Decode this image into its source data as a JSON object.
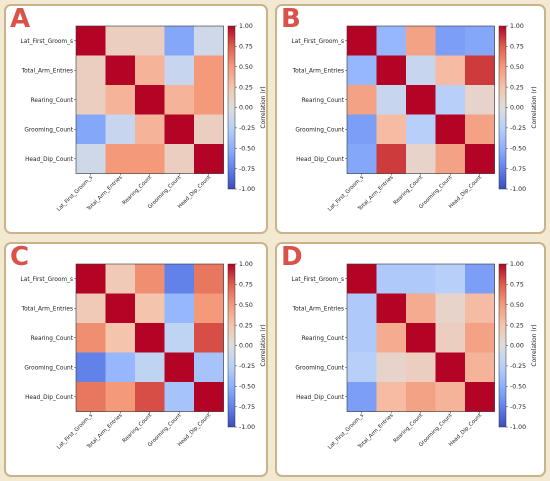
{
  "figure": {
    "background": "#f3e9d2",
    "panel_border": "#c9b489",
    "letter_color": "#d9534a"
  },
  "panels": [
    {
      "letter": "A"
    },
    {
      "letter": "B"
    },
    {
      "letter": "C"
    },
    {
      "letter": "D"
    }
  ],
  "chart_data": [
    {
      "type": "heatmap",
      "panel": "A",
      "variables": [
        "Lat_First_Groom_s",
        "Total_Arm_Entries",
        "Rearing_Count",
        "Grooming_Count",
        "Head_Dip_Count"
      ],
      "matrix": [
        [
          1.0,
          0.15,
          0.15,
          -0.55,
          -0.1
        ],
        [
          0.15,
          1.0,
          0.35,
          -0.15,
          0.5
        ],
        [
          0.15,
          0.35,
          1.0,
          0.35,
          0.5
        ],
        [
          -0.55,
          -0.15,
          0.35,
          1.0,
          0.15
        ],
        [
          -0.1,
          0.5,
          0.5,
          0.15,
          1.0
        ]
      ],
      "colorbar": {
        "label": "Correlation (r)",
        "range": [
          -1.0,
          1.0
        ],
        "ticks": [
          "1.00",
          "0.75",
          "0.50",
          "0.25",
          "0.00",
          "-0.25",
          "-0.50",
          "-0.75",
          "-1.00"
        ],
        "colormap": "coolwarm"
      }
    },
    {
      "type": "heatmap",
      "panel": "B",
      "variables": [
        "Lat_First_Groom_s",
        "Total_Arm_Entries",
        "Rearing_Count",
        "Grooming_Count",
        "Head_Dip_Count"
      ],
      "matrix": [
        [
          1.0,
          -0.45,
          0.45,
          -0.6,
          -0.55
        ],
        [
          -0.45,
          1.0,
          -0.15,
          0.3,
          0.85
        ],
        [
          0.45,
          -0.15,
          1.0,
          -0.25,
          0.1
        ],
        [
          -0.6,
          0.3,
          -0.25,
          1.0,
          0.45
        ],
        [
          -0.55,
          0.85,
          0.1,
          0.45,
          1.0
        ]
      ],
      "colorbar": {
        "label": "Correlation (r)",
        "range": [
          -1.0,
          1.0
        ],
        "ticks": [
          "1.00",
          "0.75",
          "0.50",
          "0.25",
          "0.00",
          "-0.25",
          "-0.50",
          "-0.75",
          "-1.00"
        ],
        "colormap": "coolwarm"
      }
    },
    {
      "type": "heatmap",
      "panel": "C",
      "variables": [
        "Lat_First_Groom_s",
        "Total_Arm_Entries",
        "Rearing_Count",
        "Grooming_Count",
        "Head_Dip_Count"
      ],
      "matrix": [
        [
          1.0,
          0.2,
          0.55,
          -0.75,
          0.65
        ],
        [
          0.2,
          1.0,
          0.25,
          -0.45,
          0.5
        ],
        [
          0.55,
          0.25,
          1.0,
          -0.2,
          0.8
        ],
        [
          -0.75,
          -0.45,
          -0.2,
          1.0,
          -0.35
        ],
        [
          0.65,
          0.5,
          0.8,
          -0.35,
          1.0
        ]
      ],
      "colorbar": {
        "label": "Correlation (r)",
        "range": [
          -1.0,
          1.0
        ],
        "ticks": [
          "1.00",
          "0.75",
          "0.50",
          "0.25",
          "0.00",
          "-0.25",
          "-0.50",
          "-0.75",
          "-1.00"
        ],
        "colormap": "coolwarm"
      }
    },
    {
      "type": "heatmap",
      "panel": "D",
      "variables": [
        "Lat_First_Groom_s",
        "Total_Arm_Entries",
        "Rearing_Count",
        "Grooming_Count",
        "Head_Dip_Count"
      ],
      "matrix": [
        [
          1.0,
          -0.3,
          -0.3,
          -0.25,
          -0.6
        ],
        [
          -0.3,
          1.0,
          0.4,
          0.1,
          0.3
        ],
        [
          -0.3,
          0.4,
          1.0,
          0.15,
          0.45
        ],
        [
          -0.25,
          0.1,
          0.15,
          1.0,
          0.35
        ],
        [
          -0.6,
          0.3,
          0.45,
          0.35,
          1.0
        ]
      ],
      "colorbar": {
        "label": "Correlation (r)",
        "range": [
          -1.0,
          1.0
        ],
        "ticks": [
          "1.00",
          "0.75",
          "0.50",
          "0.25",
          "0.00",
          "-0.25",
          "-0.50",
          "-0.75",
          "-1.00"
        ],
        "colormap": "coolwarm"
      }
    }
  ]
}
